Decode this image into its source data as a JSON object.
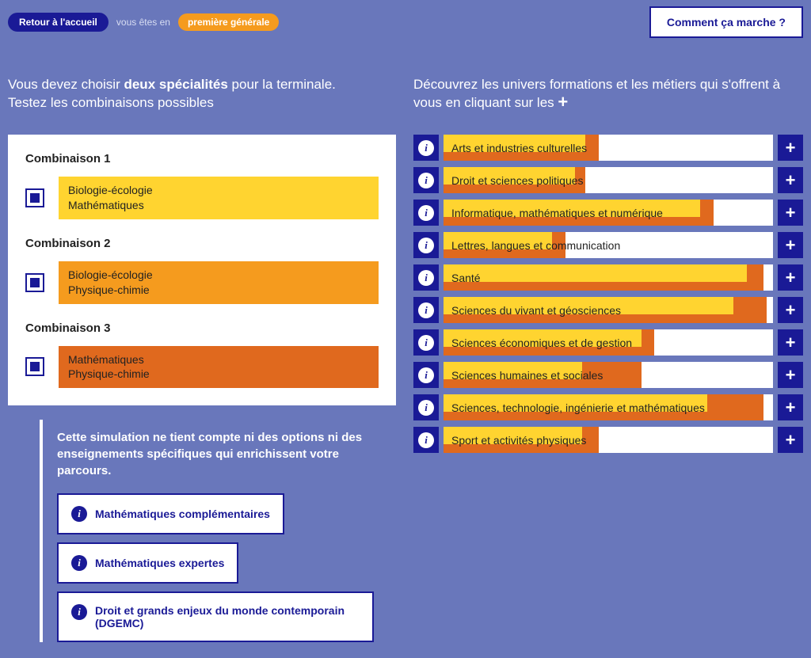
{
  "colors": {
    "background": "#6977bb",
    "primary": "#1a1a96",
    "yellow": "#ffd430",
    "orange_light": "#f59b1e",
    "orange_dark": "#e0691e",
    "white": "#ffffff"
  },
  "topbar": {
    "home_label": "Retour à l'accueil",
    "vous_etes": "vous êtes en",
    "level_label": "première générale",
    "help_button": "Comment ça marche ?"
  },
  "left": {
    "heading_prefix": "Vous devez choisir ",
    "heading_bold": "deux spécialités",
    "heading_suffix": " pour la terminale.",
    "heading_line2": "Testez les combinaisons possibles",
    "combis": [
      {
        "title": "Combinaison 1",
        "lines": [
          "Biologie-écologie",
          "Mathématiques"
        ],
        "color": "yellow",
        "checked": true
      },
      {
        "title": "Combinaison 2",
        "lines": [
          "Biologie-écologie",
          "Physique-chimie"
        ],
        "color": "orange_light",
        "checked": true
      },
      {
        "title": "Combinaison 3",
        "lines": [
          "Mathématiques",
          "Physique-chimie"
        ],
        "color": "orange_dark",
        "checked": true
      }
    ],
    "note_text": "Cette simulation ne tient compte ni des options ni des enseignements spécifiques qui enrichissent votre parcours.",
    "options": [
      {
        "label": "Mathématiques complémentaires",
        "wide": false
      },
      {
        "label": "Mathématiques expertes",
        "wide": false
      },
      {
        "label": "Droit et grands enjeux du monde contemporain (DGEMC)",
        "wide": true
      }
    ]
  },
  "right": {
    "heading_prefix": "Découvrez les univers formations et les métiers qui s'offrent à vous en cliquant sur les ",
    "domains": [
      {
        "label": "Arts et industries culturelles",
        "yellow": 43,
        "orange": 47
      },
      {
        "label": "Droit et sciences politiques",
        "yellow": 40,
        "orange": 43
      },
      {
        "label": "Informatique, mathématiques et numérique",
        "yellow": 78,
        "orange": 82
      },
      {
        "label": "Lettres, langues et communication",
        "yellow": 33,
        "orange": 37
      },
      {
        "label": "Santé",
        "yellow": 92,
        "orange": 97
      },
      {
        "label": "Sciences du vivant et géosciences",
        "yellow": 88,
        "orange": 98
      },
      {
        "label": "Sciences économiques et de gestion",
        "yellow": 60,
        "orange": 64
      },
      {
        "label": "Sciences humaines et sociales",
        "yellow": 42,
        "orange": 60
      },
      {
        "label": "Sciences, technologie, ingénierie et mathématiques",
        "yellow": 80,
        "orange": 97
      },
      {
        "label": "Sport et activités physiques",
        "yellow": 42,
        "orange": 47
      }
    ]
  }
}
